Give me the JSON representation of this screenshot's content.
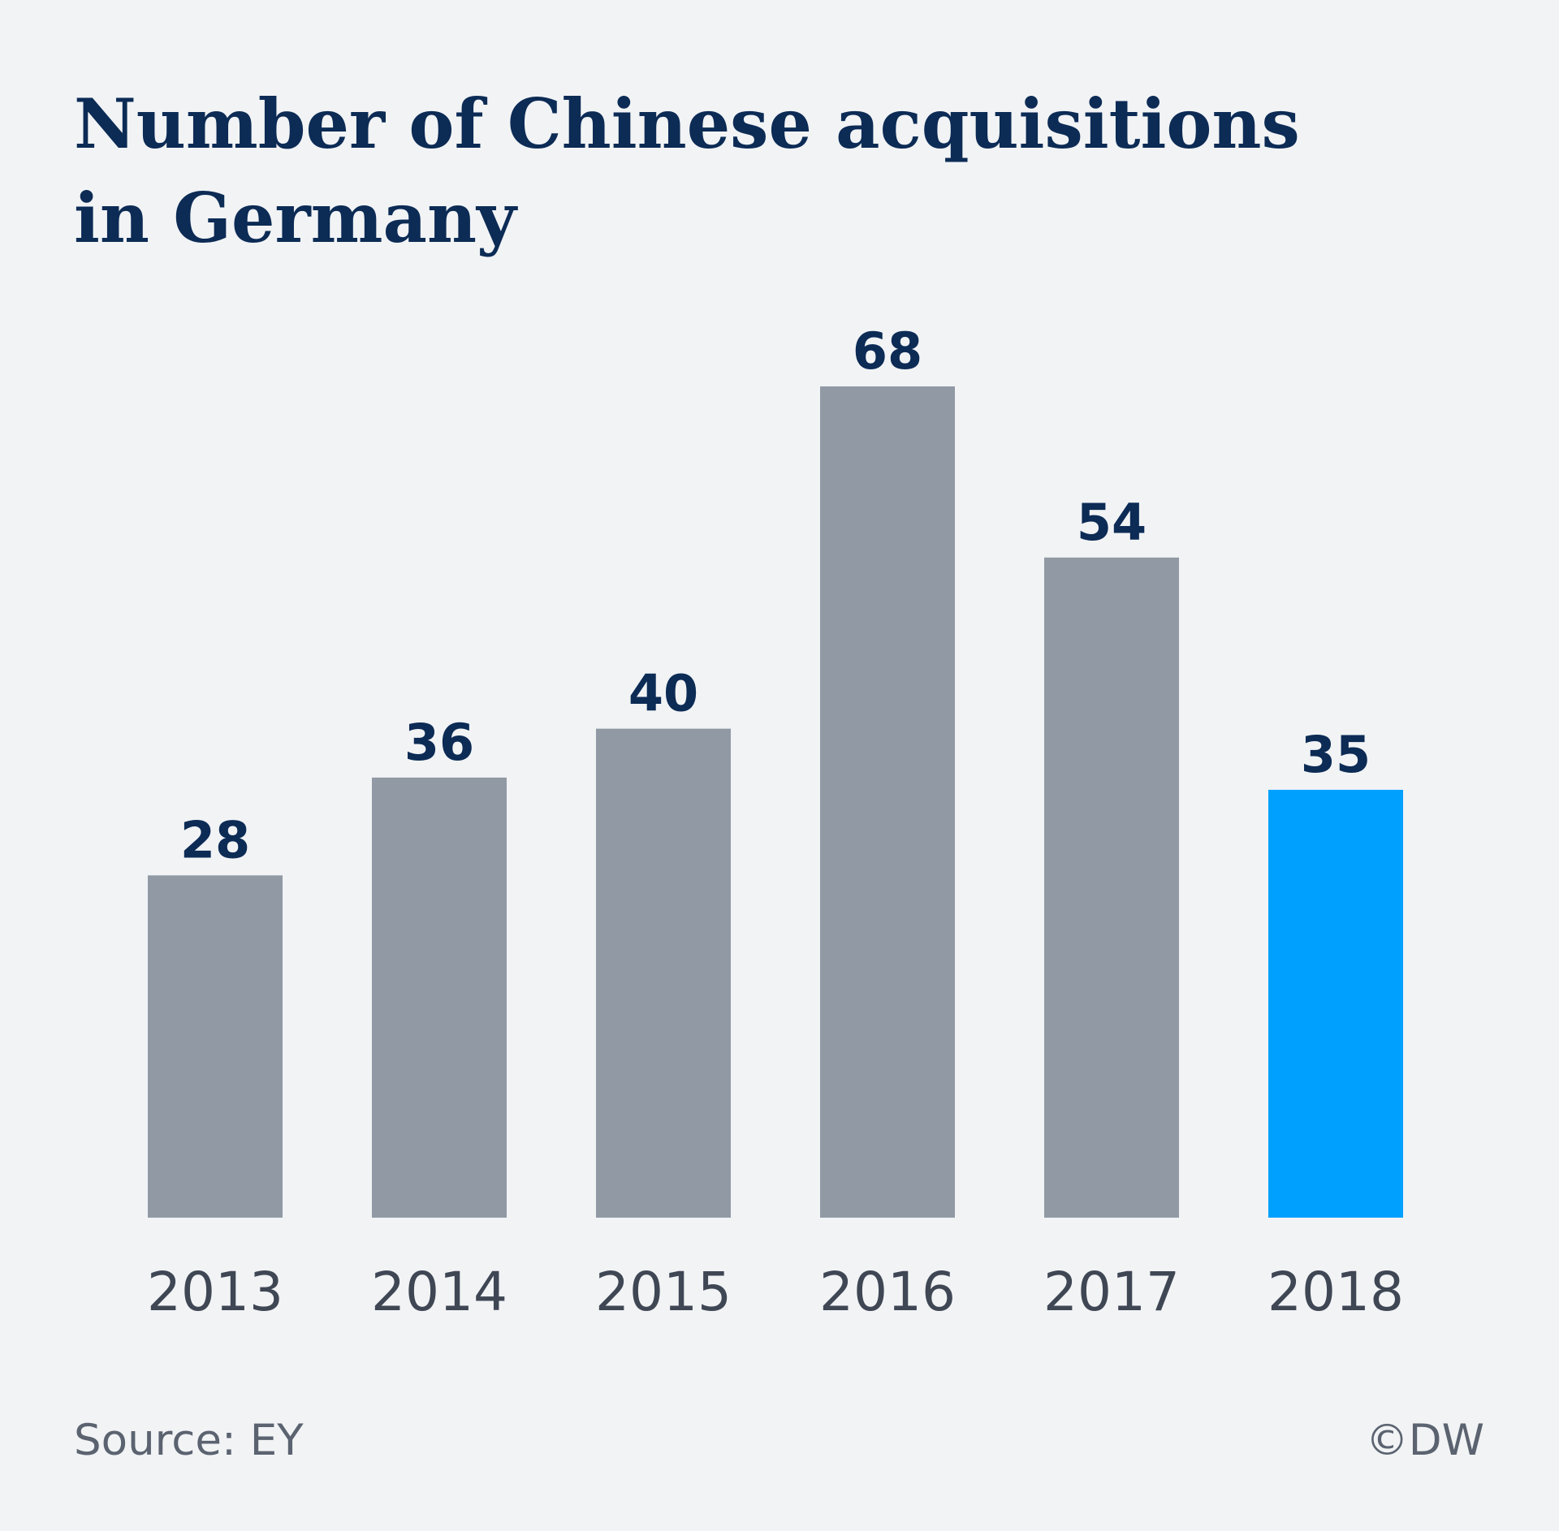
{
  "chart_data": {
    "type": "bar",
    "title": "Number of Chinese acquisitions in Germany",
    "categories": [
      "2013",
      "2014",
      "2015",
      "2016",
      "2017",
      "2018"
    ],
    "values": [
      28,
      36,
      40,
      68,
      54,
      35
    ],
    "value_labels": [
      "28",
      "36",
      "40",
      "68",
      "54",
      "35"
    ],
    "highlight_index": 5,
    "ylim": [
      0,
      68
    ],
    "grid": false,
    "colors": {
      "bar": "#9099a4",
      "highlight": "#00a0ff",
      "title": "#0c2b55",
      "background": "#f1f3f5"
    }
  },
  "footer": {
    "source": "Source: EY",
    "credit": "©DW"
  }
}
